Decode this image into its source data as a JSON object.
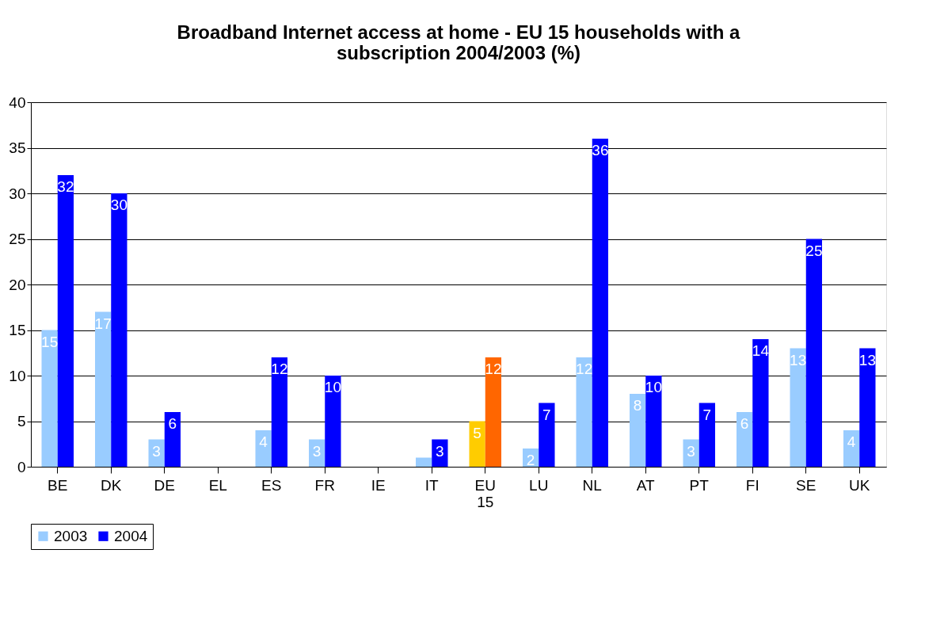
{
  "chart_data": {
    "type": "bar",
    "title": "Broadband Internet access at home - EU 15 households with a subscription 2004/2003 (%)",
    "categories": [
      "BE",
      "DK",
      "DE",
      "EL",
      "ES",
      "FR",
      "IE",
      "IT",
      "EU 15",
      "LU",
      "NL",
      "AT",
      "PT",
      "FI",
      "SE",
      "UK"
    ],
    "series": [
      {
        "name": "2003",
        "color": "#99ccff",
        "colors": [
          "#99ccff",
          "#99ccff",
          "#99ccff",
          "#99ccff",
          "#99ccff",
          "#99ccff",
          "#99ccff",
          "#99ccff",
          "#ffcc00",
          "#99ccff",
          "#99ccff",
          "#99ccff",
          "#99ccff",
          "#99ccff",
          "#99ccff",
          "#99ccff"
        ],
        "values": [
          15,
          17,
          3,
          null,
          4,
          3,
          null,
          1,
          5,
          2,
          12,
          8,
          3,
          6,
          13,
          4
        ],
        "value_labels": [
          "15",
          "17",
          "3",
          null,
          "4",
          "3",
          null,
          null,
          "5",
          "2",
          "12",
          "8",
          "3",
          "6",
          "13",
          "4"
        ]
      },
      {
        "name": "2004",
        "color": "#0000ff",
        "colors": [
          "#0000ff",
          "#0000ff",
          "#0000ff",
          "#0000ff",
          "#0000ff",
          "#0000ff",
          "#0000ff",
          "#0000ff",
          "#ff6600",
          "#0000ff",
          "#0000ff",
          "#0000ff",
          "#0000ff",
          "#0000ff",
          "#0000ff",
          "#0000ff"
        ],
        "values": [
          32,
          30,
          6,
          null,
          12,
          10,
          null,
          3,
          12,
          7,
          36,
          10,
          7,
          14,
          25,
          13
        ],
        "value_labels": [
          "32",
          "30",
          "6",
          null,
          "12",
          "10",
          null,
          "3",
          "12",
          "7",
          "36",
          "10",
          "7",
          "14",
          "25",
          "13"
        ]
      }
    ],
    "ylim": [
      0,
      40
    ],
    "yticks": [
      0,
      5,
      10,
      15,
      20,
      25,
      30,
      35,
      40
    ],
    "grid": "y",
    "legend": "bottom"
  }
}
